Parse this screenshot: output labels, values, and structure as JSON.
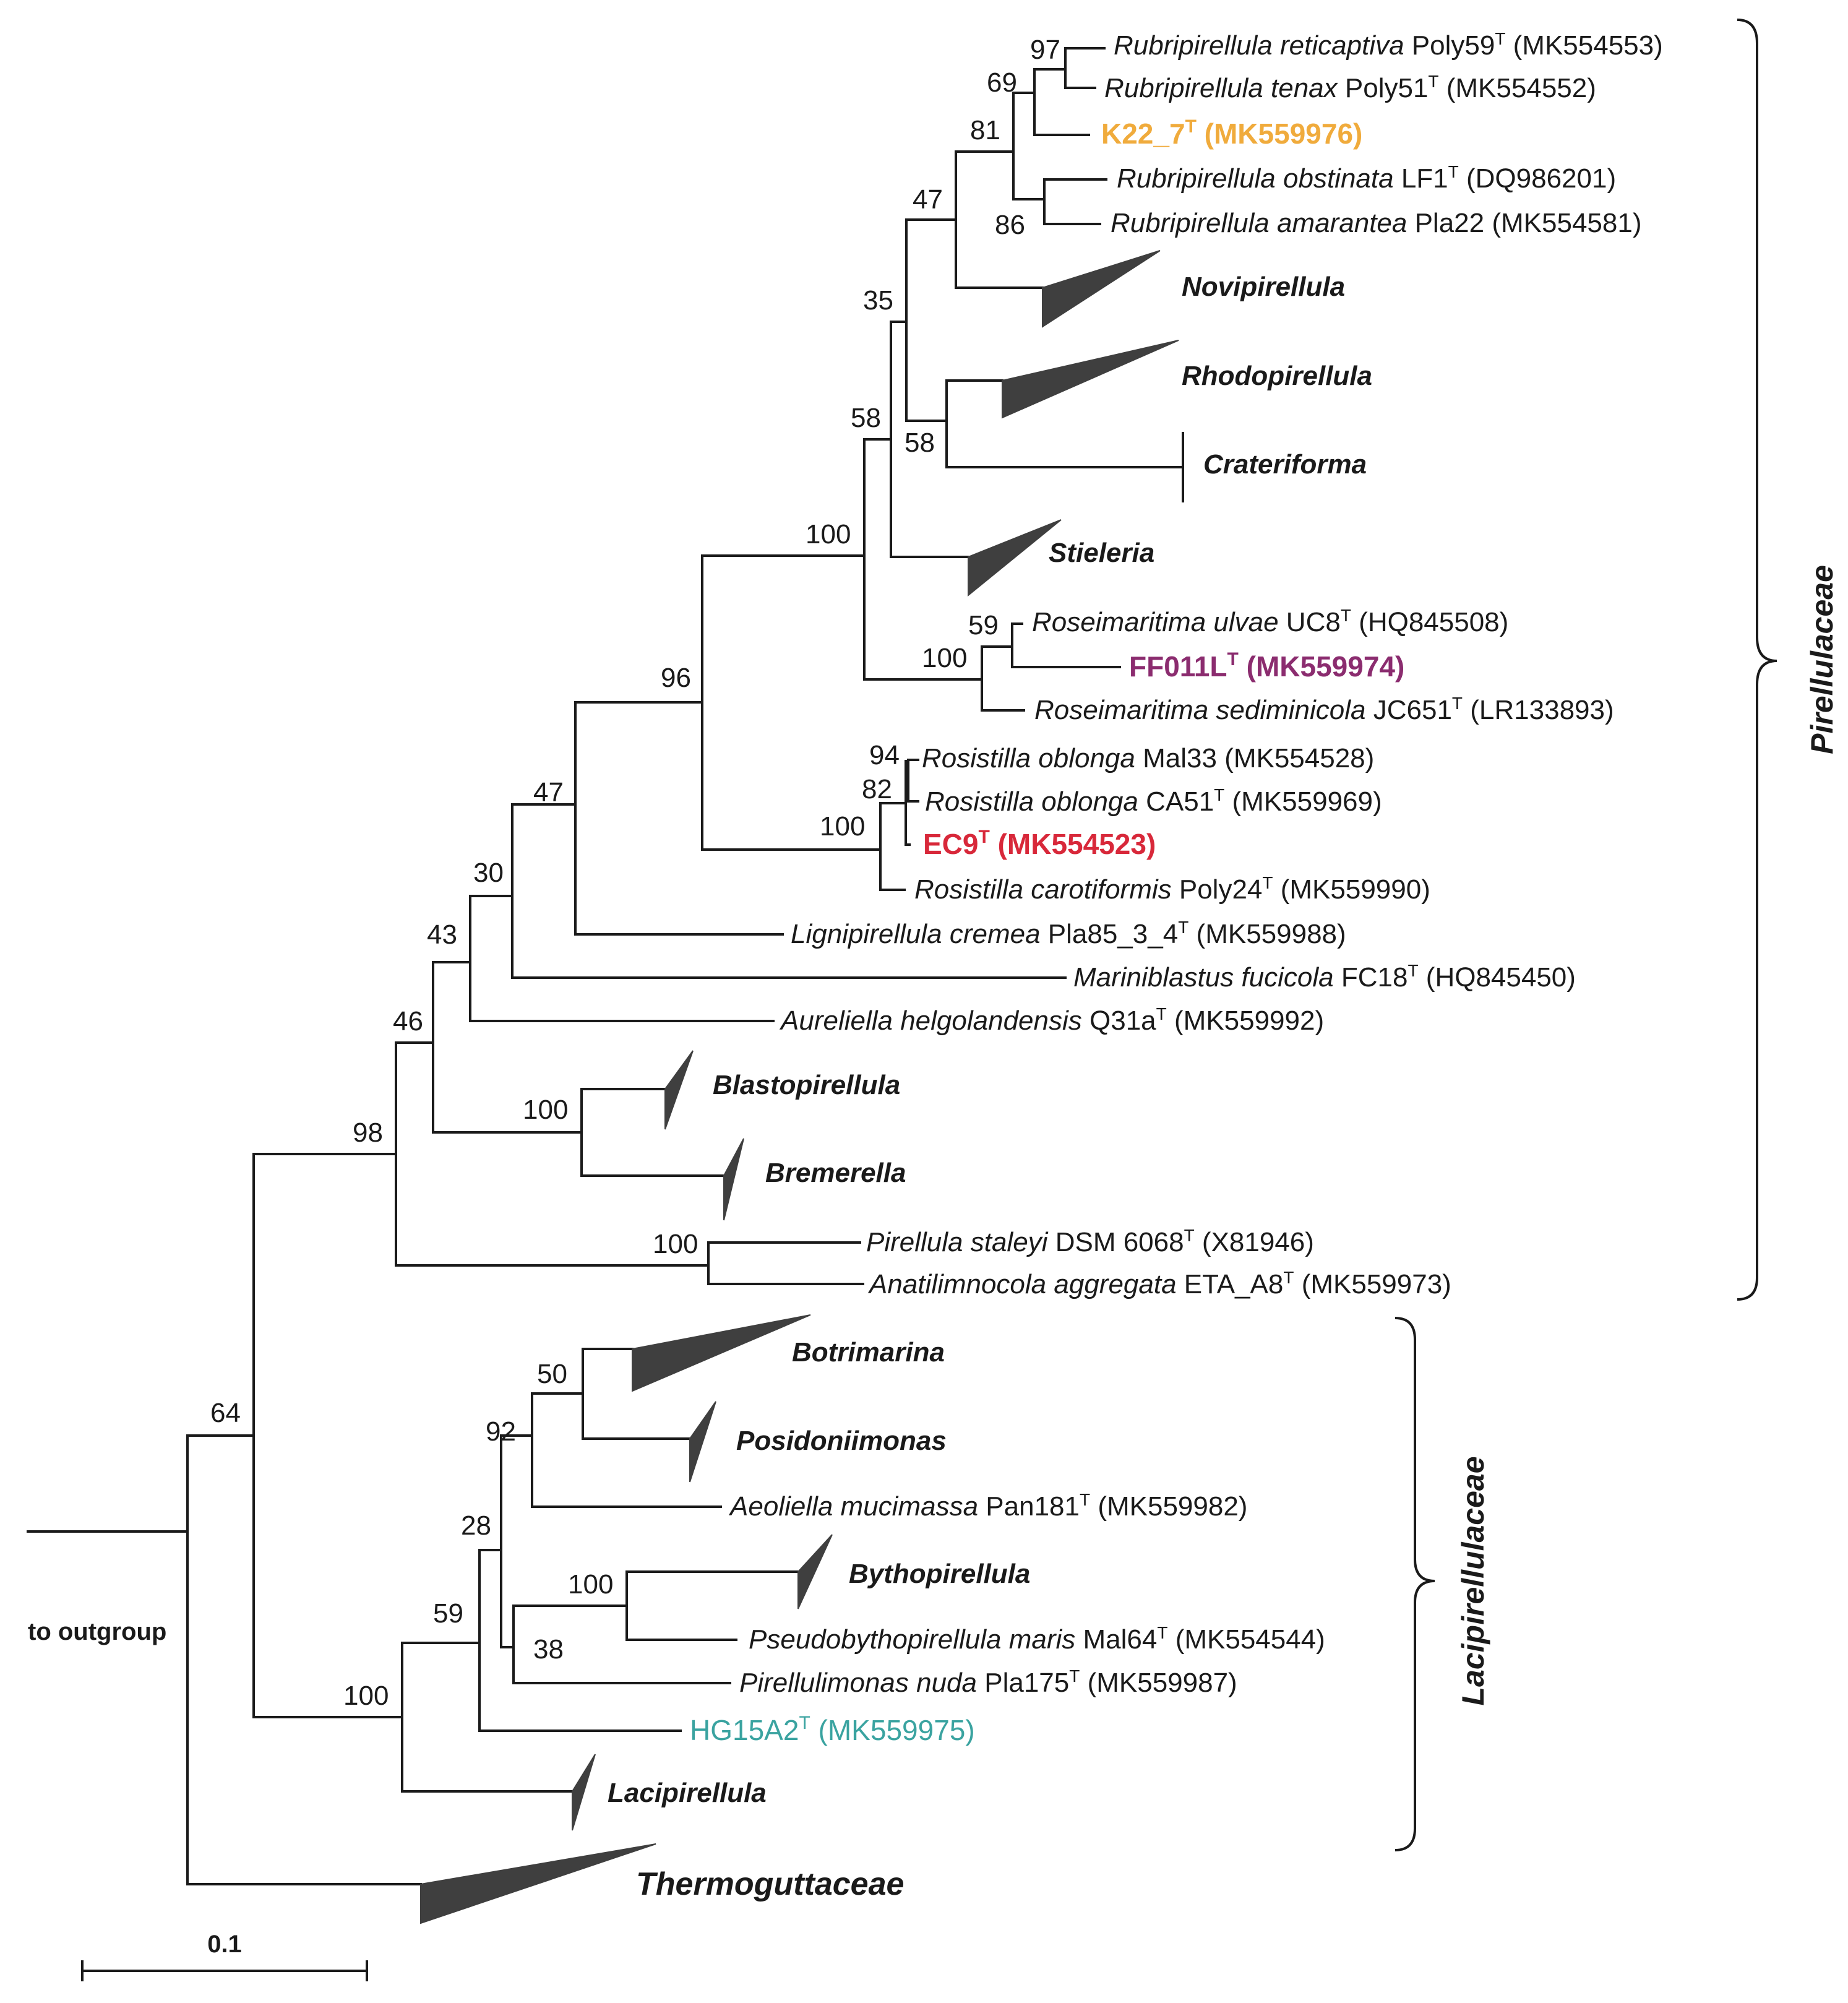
{
  "bootstraps": {
    "n97": "97",
    "n69": "69",
    "n81": "81",
    "n86": "86",
    "n47a": "47",
    "n35": "35",
    "n58a": "58",
    "n58b": "58",
    "n100a": "100",
    "n59a": "59",
    "n100b": "100",
    "n96": "96",
    "n94": "94",
    "n82": "82",
    "n100c": "100",
    "n47b": "47",
    "n30": "30",
    "n43": "43",
    "n46": "46",
    "n100d": "100",
    "n98": "98",
    "n100e": "100",
    "n64": "64",
    "n50": "50",
    "n92": "92",
    "n28": "28",
    "n100f": "100",
    "n38": "38",
    "n59b": "59",
    "n100g": "100"
  },
  "taxa": {
    "reticaptiva": {
      "genus": "Rubripirellula reticaptiva",
      "strain": " Poly59",
      "sup": "T",
      "acc": " (MK554553)"
    },
    "tenax": {
      "genus": "Rubripirellula tenax",
      "strain": " Poly51",
      "sup": "T",
      "acc": " (MK554552)"
    },
    "k22": {
      "strain": "K22_7",
      "sup": "T",
      "acc": " (MK559976)"
    },
    "obstinata": {
      "genus": "Rubripirellula obstinata",
      "strain": " LF1",
      "sup": "T",
      "acc": " (DQ986201)"
    },
    "amarantea": {
      "genus": "Rubripirellula amarantea",
      "strain": " Pla22",
      "acc": " (MK554581)"
    },
    "ulvae": {
      "genus": "Roseimaritima ulvae",
      "strain": " UC8",
      "sup": "T",
      "acc": " (HQ845508)"
    },
    "ff011l": {
      "strain": "FF011L",
      "sup": "T",
      "acc": " (MK559974)"
    },
    "sediminicola": {
      "genus": "Roseimaritima sediminicola",
      "strain": " JC651",
      "sup": "T",
      "acc": " (LR133893)"
    },
    "mal33": {
      "genus": "Rosistilla oblonga",
      "strain": " Mal33",
      "acc": " (MK554528)"
    },
    "ca51": {
      "genus": "Rosistilla oblonga",
      "strain": " CA51",
      "sup": "T",
      "acc": " (MK559969)"
    },
    "ec9": {
      "strain": "EC9",
      "sup": "T",
      "acc": " (MK554523)"
    },
    "carotiformis": {
      "genus": "Rosistilla carotiformis",
      "strain": " Poly24",
      "sup": "T",
      "acc": " (MK559990)"
    },
    "cremea": {
      "genus": "Lignipirellula cremea",
      "strain": " Pla85_3_4",
      "sup": "T",
      "acc": " (MK559988)"
    },
    "fucicola": {
      "genus": "Mariniblastus fucicola",
      "strain": " FC18",
      "sup": "T",
      "acc": " (HQ845450)"
    },
    "helgolandensis": {
      "genus": "Aureliella helgolandensis",
      "strain": " Q31a",
      "sup": "T",
      "acc": " (MK559992)"
    },
    "staleyi": {
      "genus": "Pirellula staleyi",
      "strain": " DSM 6068",
      "sup": "T",
      "acc": " (X81946)"
    },
    "aggregata": {
      "genus": "Anatilimnocola aggregata",
      "strain": " ETA_A8",
      "sup": "T",
      "acc": " (MK559973)"
    },
    "mucimassa": {
      "genus": "Aeoliella mucimassa",
      "strain": " Pan181",
      "sup": "T",
      "acc": " (MK559982)"
    },
    "maris": {
      "genus": "Pseudobythopirellula maris",
      "strain": " Mal64",
      "sup": "T",
      "acc": " (MK554544)"
    },
    "nuda": {
      "genus": "Pirellulimonas nuda",
      "strain": " Pla175",
      "sup": "T",
      "acc": " (MK559987)"
    },
    "hg15a2": {
      "strain": "HG15A2",
      "sup": "T",
      "acc": " (MK559975)"
    }
  },
  "clades": {
    "novipirellula": "Novipirellula",
    "rhodopirellula": "Rhodopirellula",
    "crateriforma": "Crateriforma",
    "stieleria": "Stieleria",
    "blastopirellula": "Blastopirellula",
    "bremerella": "Bremerella",
    "botrimarina": "Botrimarina",
    "posidoniimonas": "Posidoniimonas",
    "bythopirellula": "Bythopirellula",
    "lacipirellula": "Lacipirellula",
    "thermoguttaceae": "Thermoguttaceae"
  },
  "families": {
    "pirellulaceae": "Pirellulaceae",
    "lacipirellulaceae": "Lacipirellulaceae"
  },
  "outgroup_label": "to outgroup",
  "scale_label": "0.1",
  "colors": {
    "k22": "#f0ab3c",
    "ff011l": "#8b2c6f",
    "ec9": "#d8283a",
    "hg15a2": "#3aa3a0",
    "triangle": "#3f3f3f"
  }
}
